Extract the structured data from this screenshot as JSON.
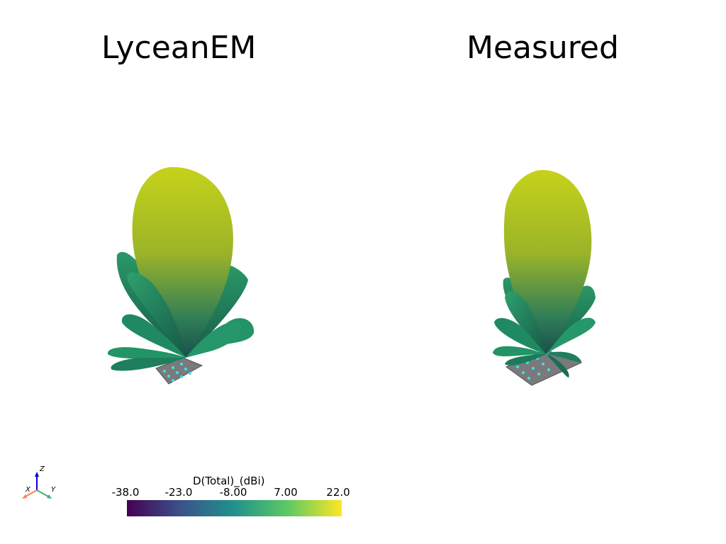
{
  "panels": {
    "left_title": "LyceanEM",
    "right_title": "Measured"
  },
  "colorbar": {
    "title": "D(Total)_(dBi)",
    "ticks": [
      "-38.0",
      "-23.0",
      "-8.00",
      "7.00",
      "22.0"
    ],
    "colormap": [
      "#440154",
      "#3b528b",
      "#21918c",
      "#5ec962",
      "#fde725"
    ]
  },
  "axes_widget": {
    "x_label": "X",
    "y_label": "Y",
    "z_label": "Z"
  }
}
